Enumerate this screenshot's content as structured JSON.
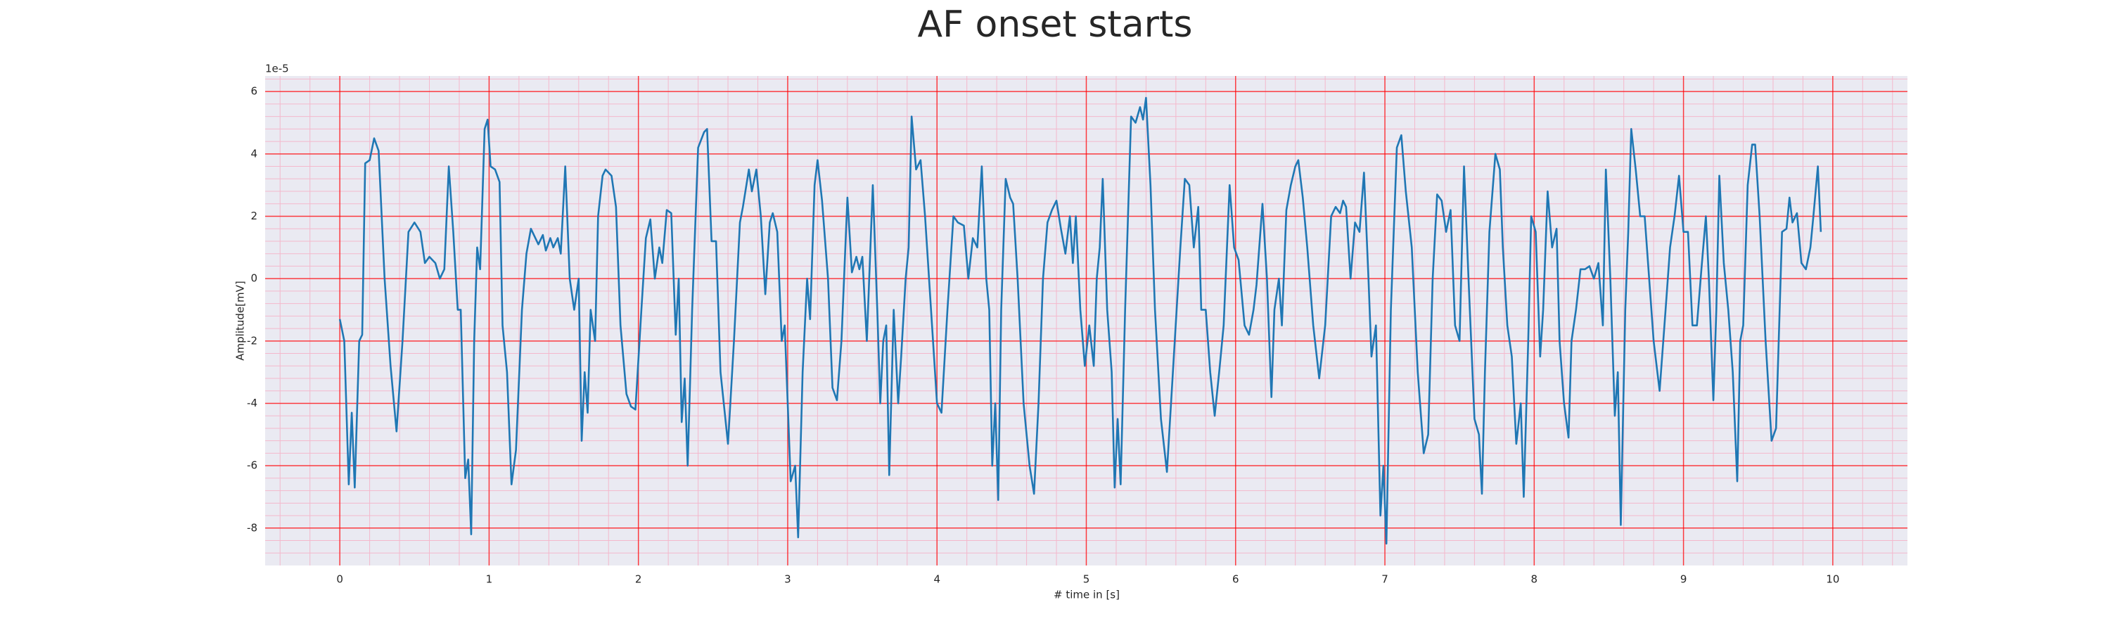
{
  "chart_data": {
    "type": "line",
    "title": "AF onset starts",
    "xlabel": "# time in [s]",
    "ylabel": "Amplitude[mV]",
    "offset_label": "1e-5",
    "color": "#1f77b4",
    "background": "#eaeaf2",
    "grid_color": "#ff0000",
    "minor_grid_color": "#f4b8cc",
    "grid": true,
    "minor_grid": true,
    "xlim": [
      -0.5,
      10.5
    ],
    "ylim": [
      -9.2,
      6.5
    ],
    "xticks": [
      0,
      1,
      2,
      3,
      4,
      5,
      6,
      7,
      8,
      9,
      10
    ],
    "yticks": [
      -8,
      -6,
      -4,
      -2,
      0,
      2,
      4,
      6
    ],
    "x": [
      0.0,
      0.03,
      0.06,
      0.08,
      0.1,
      0.13,
      0.15,
      0.17,
      0.2,
      0.23,
      0.26,
      0.3,
      0.34,
      0.38,
      0.42,
      0.46,
      0.5,
      0.54,
      0.57,
      0.6,
      0.64,
      0.67,
      0.7,
      0.73,
      0.76,
      0.79,
      0.81,
      0.84,
      0.86,
      0.88,
      0.9,
      0.92,
      0.94,
      0.97,
      0.99,
      1.01,
      1.04,
      1.07,
      1.09,
      1.12,
      1.15,
      1.18,
      1.22,
      1.25,
      1.28,
      1.31,
      1.33,
      1.36,
      1.38,
      1.41,
      1.43,
      1.46,
      1.48,
      1.51,
      1.54,
      1.57,
      1.6,
      1.62,
      1.64,
      1.66,
      1.68,
      1.71,
      1.73,
      1.76,
      1.78,
      1.82,
      1.85,
      1.88,
      1.92,
      1.95,
      1.98,
      2.02,
      2.05,
      2.08,
      2.11,
      2.14,
      2.16,
      2.19,
      2.22,
      2.25,
      2.27,
      2.29,
      2.31,
      2.33,
      2.36,
      2.4,
      2.44,
      2.46,
      2.49,
      2.52,
      2.55,
      2.6,
      2.64,
      2.68,
      2.7,
      2.74,
      2.76,
      2.79,
      2.82,
      2.85,
      2.88,
      2.9,
      2.93,
      2.96,
      2.98,
      3.02,
      3.05,
      3.07,
      3.1,
      3.13,
      3.15,
      3.18,
      3.2,
      3.23,
      3.27,
      3.3,
      3.33,
      3.36,
      3.4,
      3.43,
      3.46,
      3.48,
      3.5,
      3.53,
      3.57,
      3.6,
      3.62,
      3.64,
      3.66,
      3.68,
      3.71,
      3.74,
      3.76,
      3.79,
      3.81,
      3.83,
      3.86,
      3.89,
      3.92,
      3.96,
      4.0,
      4.03,
      4.07,
      4.11,
      4.14,
      4.18,
      4.21,
      4.24,
      4.27,
      4.3,
      4.33,
      4.35,
      4.37,
      4.39,
      4.41,
      4.43,
      4.46,
      4.49,
      4.51,
      4.54,
      4.58,
      4.62,
      4.65,
      4.68,
      4.71,
      4.74,
      4.77,
      4.8,
      4.83,
      4.86,
      4.89,
      4.91,
      4.93,
      4.96,
      4.99,
      5.02,
      5.05,
      5.07,
      5.09,
      5.11,
      5.14,
      5.17,
      5.19,
      5.21,
      5.23,
      5.26,
      5.3,
      5.33,
      5.36,
      5.38,
      5.4,
      5.43,
      5.46,
      5.5,
      5.54,
      5.58,
      5.63,
      5.66,
      5.69,
      5.72,
      5.75,
      5.77,
      5.8,
      5.83,
      5.86,
      5.89,
      5.92,
      5.96,
      5.99,
      6.02,
      6.06,
      6.09,
      6.12,
      6.14,
      6.18,
      6.21,
      6.24,
      6.26,
      6.29,
      6.31,
      6.34,
      6.37,
      6.4,
      6.42,
      6.45,
      6.48,
      6.52,
      6.56,
      6.6,
      6.64,
      6.67,
      6.7,
      6.72,
      6.74,
      6.77,
      6.8,
      6.83,
      6.86,
      6.89,
      6.91,
      6.94,
      6.97,
      6.99,
      7.01,
      7.04,
      7.08,
      7.11,
      7.14,
      7.18,
      7.22,
      7.26,
      7.29,
      7.32,
      7.35,
      7.38,
      7.41,
      7.44,
      7.47,
      7.5,
      7.53,
      7.56,
      7.6,
      7.63,
      7.65,
      7.67,
      7.7,
      7.74,
      7.77,
      7.79,
      7.82,
      7.85,
      7.88,
      7.91,
      7.93,
      7.96,
      7.98,
      8.01,
      8.04,
      8.06,
      8.09,
      8.12,
      8.15,
      8.17,
      8.2,
      8.23,
      8.25,
      8.28,
      8.31,
      8.34,
      8.37,
      8.4,
      8.43,
      8.46,
      8.48,
      8.51,
      8.54,
      8.56,
      8.58,
      8.61,
      8.63,
      8.65,
      8.68,
      8.71,
      8.74,
      8.77,
      8.8,
      8.84,
      8.88,
      8.91,
      8.94,
      8.97,
      9.0,
      9.03,
      9.06,
      9.09,
      9.12,
      9.15,
      9.17,
      9.2,
      9.22,
      9.24,
      9.27,
      9.3,
      9.33,
      9.36,
      9.38,
      9.4,
      9.43,
      9.46,
      9.48,
      9.51,
      9.55,
      9.59,
      9.62,
      9.66,
      9.69,
      9.71,
      9.73,
      9.76,
      9.79,
      9.82,
      9.85,
      9.87,
      9.9,
      9.92
    ],
    "values": [
      -1.3,
      -2.0,
      -6.6,
      -4.3,
      -6.7,
      -2.0,
      -1.8,
      3.7,
      3.8,
      4.5,
      4.1,
      0.0,
      -2.8,
      -4.9,
      -2.0,
      1.5,
      1.8,
      1.5,
      0.5,
      0.7,
      0.5,
      0.0,
      0.3,
      3.6,
      1.5,
      -1.0,
      -1.0,
      -6.4,
      -5.8,
      -8.2,
      -2.0,
      1.0,
      0.3,
      4.8,
      5.1,
      3.6,
      3.5,
      3.1,
      -1.5,
      -3.0,
      -6.6,
      -5.5,
      -1.0,
      0.8,
      1.6,
      1.3,
      1.1,
      1.4,
      0.9,
      1.3,
      1.0,
      1.3,
      0.8,
      3.6,
      0.0,
      -1.0,
      0.0,
      -5.2,
      -3.0,
      -4.3,
      -1.0,
      -2.0,
      2.0,
      3.3,
      3.5,
      3.3,
      2.3,
      -1.5,
      -3.7,
      -4.1,
      -4.2,
      -1.0,
      1.3,
      1.9,
      0.0,
      1.0,
      0.5,
      2.2,
      2.1,
      -1.8,
      0.0,
      -4.6,
      -3.2,
      -6.0,
      -1.0,
      4.2,
      4.7,
      4.8,
      1.2,
      1.2,
      -3.0,
      -5.3,
      -2.0,
      1.8,
      2.3,
      3.5,
      2.8,
      3.5,
      2.0,
      -0.5,
      1.8,
      2.1,
      1.5,
      -2.0,
      -1.5,
      -6.5,
      -6.0,
      -8.3,
      -3.0,
      0.0,
      -1.3,
      3.0,
      3.8,
      2.5,
      0.0,
      -3.5,
      -3.9,
      -2.0,
      2.6,
      0.2,
      0.7,
      0.3,
      0.7,
      -2.0,
      3.0,
      -1.0,
      -4.0,
      -2.0,
      -1.5,
      -6.3,
      -1.0,
      -4.0,
      -2.5,
      0.0,
      1.0,
      5.2,
      3.5,
      3.8,
      2.0,
      -1.0,
      -4.0,
      -4.3,
      -1.0,
      2.0,
      1.8,
      1.7,
      0.0,
      1.3,
      1.0,
      3.6,
      0.0,
      -1.0,
      -6.0,
      -4.0,
      -7.1,
      -1.0,
      3.2,
      2.6,
      2.4,
      0.0,
      -4.0,
      -6.0,
      -6.9,
      -4.0,
      0.0,
      1.8,
      2.2,
      2.5,
      1.6,
      0.8,
      2.0,
      0.5,
      2.0,
      -1.0,
      -2.8,
      -1.5,
      -2.8,
      0.0,
      1.0,
      3.2,
      -1.0,
      -3.0,
      -6.7,
      -4.5,
      -6.6,
      -1.0,
      5.2,
      5.0,
      5.5,
      5.1,
      5.8,
      3.0,
      -1.0,
      -4.5,
      -6.2,
      -3.0,
      1.0,
      3.2,
      3.0,
      1.0,
      2.3,
      -1.0,
      -1.0,
      -3.0,
      -4.4,
      -3.0,
      -1.5,
      3.0,
      1.0,
      0.6,
      -1.5,
      -1.8,
      -1.0,
      -0.2,
      2.4,
      0.0,
      -3.8,
      -1.0,
      0.0,
      -1.5,
      2.2,
      3.0,
      3.6,
      3.8,
      2.6,
      1.0,
      -1.5,
      -3.2,
      -1.5,
      2.0,
      2.3,
      2.1,
      2.5,
      2.3,
      0.0,
      1.8,
      1.5,
      3.4,
      0.0,
      -2.5,
      -1.5,
      -7.6,
      -6.0,
      -8.5,
      -1.0,
      4.2,
      4.6,
      2.8,
      1.0,
      -3.0,
      -5.6,
      -5.0,
      0.0,
      2.7,
      2.5,
      1.5,
      2.2,
      -1.5,
      -2.0,
      3.6,
      0.0,
      -4.5,
      -5.0,
      -6.9,
      -3.0,
      1.5,
      4.0,
      3.5,
      1.0,
      -1.5,
      -2.5,
      -5.3,
      -4.0,
      -7.0,
      -2.0,
      2.0,
      1.5,
      -2.5,
      -1.0,
      2.8,
      1.0,
      1.6,
      -2.0,
      -4.0,
      -5.1,
      -2.0,
      -1.0,
      0.3,
      0.3,
      0.4,
      0.0,
      0.5,
      -1.5,
      3.5,
      0.0,
      -4.4,
      -3.0,
      -7.9,
      -1.0,
      1.5,
      4.8,
      3.5,
      2.0,
      2.0,
      0.0,
      -2.0,
      -3.6,
      -1.0,
      1.0,
      2.0,
      3.3,
      1.5,
      1.5,
      -1.5,
      -1.5,
      0.3,
      2.0,
      0.0,
      -3.9,
      -1.0,
      3.3,
      0.5,
      -1.0,
      -3.0,
      -6.5,
      -2.0,
      -1.5,
      3.0,
      4.3,
      4.3,
      2.0,
      -2.0,
      -5.2,
      -4.8,
      1.5,
      1.6,
      2.6,
      1.8,
      2.1,
      0.5,
      0.3,
      1.0,
      2.0,
      3.6,
      1.5
    ]
  }
}
